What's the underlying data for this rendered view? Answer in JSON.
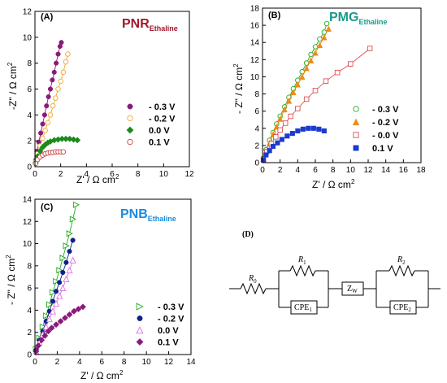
{
  "chart_data": [
    {
      "type": "scatter",
      "panel_label": "(A)",
      "title_main": "PNR",
      "title_sub": "Ethaline",
      "title_color": "#a0182a",
      "xlabel_main": "Z' / Ω cm",
      "ylabel_main": "-Z\" / Ω cm",
      "unit_power": "2",
      "xlim": [
        0,
        12
      ],
      "ylim": [
        0,
        12
      ],
      "xticks": [
        "0",
        "2",
        "4",
        "6",
        "8",
        "10",
        "12"
      ],
      "yticks": [
        "0",
        "2",
        "4",
        "6",
        "8",
        "10",
        "12"
      ],
      "legend_pos": "right-middle",
      "series": [
        {
          "name": "- 0.3 V",
          "color": "#8b1a7a",
          "marker": "circle-filled",
          "x": [
            0.05,
            0.15,
            0.3,
            0.45,
            0.6,
            0.75,
            0.9,
            1.05,
            1.2,
            1.35,
            1.5,
            1.65,
            1.8,
            1.95,
            2.05
          ],
          "y": [
            0.5,
            1.2,
            1.9,
            2.6,
            3.3,
            4.0,
            4.7,
            5.4,
            6.0,
            6.7,
            7.3,
            8.0,
            8.7,
            9.3,
            9.6
          ]
        },
        {
          "name": "- 0.2 V",
          "color": "#f0a830",
          "marker": "circle-open",
          "x": [
            0.05,
            0.2,
            0.4,
            0.6,
            0.8,
            1.0,
            1.2,
            1.4,
            1.6,
            1.8,
            2.0,
            2.2,
            2.4,
            2.55
          ],
          "y": [
            0.4,
            1.0,
            1.6,
            2.2,
            2.8,
            3.4,
            4.0,
            4.7,
            5.3,
            6.0,
            6.6,
            7.3,
            8.1,
            8.7
          ]
        },
        {
          "name": "0.0 V",
          "color": "#1a8a1a",
          "marker": "diamond-filled",
          "x": [
            0.05,
            0.2,
            0.4,
            0.6,
            0.8,
            1.0,
            1.2,
            1.5,
            1.8,
            2.1,
            2.4,
            2.7,
            3.0,
            3.3
          ],
          "y": [
            0.3,
            0.8,
            1.2,
            1.5,
            1.7,
            1.85,
            1.95,
            2.05,
            2.1,
            2.15,
            2.15,
            2.15,
            2.1,
            2.05
          ]
        },
        {
          "name": "0.1 V",
          "color": "#d04040",
          "marker": "circle-open",
          "x": [
            0.05,
            0.2,
            0.4,
            0.6,
            0.8,
            1.0,
            1.2,
            1.4,
            1.6,
            1.8,
            2.0,
            2.2
          ],
          "y": [
            0.25,
            0.55,
            0.75,
            0.9,
            1.0,
            1.05,
            1.1,
            1.1,
            1.15,
            1.15,
            1.15,
            1.15
          ]
        }
      ]
    },
    {
      "type": "scatter",
      "panel_label": "(B)",
      "title_main": "PMG",
      "title_sub": "Ethaline",
      "title_color": "#1a9a8a",
      "xlabel_main": "Z' / Ω cm",
      "ylabel_main": "- Z\" / Ω cm",
      "unit_power": "2",
      "xlim": [
        0,
        18
      ],
      "ylim": [
        0,
        18
      ],
      "xticks": [
        "0",
        "2",
        "4",
        "6",
        "8",
        "10",
        "12",
        "14",
        "16",
        "18"
      ],
      "yticks": [
        "0",
        "2",
        "4",
        "6",
        "8",
        "10",
        "12",
        "14",
        "16",
        "18"
      ],
      "legend_pos": "right-bottom",
      "series": [
        {
          "name": "- 0.3 V",
          "color": "#22aa22",
          "marker": "circle-open",
          "x": [
            0.1,
            0.4,
            0.8,
            1.2,
            1.6,
            2.0,
            2.5,
            3.0,
            3.5,
            4.0,
            4.5,
            5.0,
            5.5,
            6.0,
            6.5,
            7.0,
            7.3
          ],
          "y": [
            0.5,
            1.5,
            2.6,
            3.5,
            4.5,
            5.4,
            6.5,
            7.6,
            8.6,
            9.6,
            10.6,
            11.6,
            12.6,
            13.5,
            14.4,
            15.2,
            16.2
          ]
        },
        {
          "name": "- 0.2 V",
          "color": "#f08a1a",
          "marker": "triangle-filled",
          "x": [
            0.1,
            0.4,
            0.8,
            1.2,
            1.6,
            2.0,
            2.5,
            3.0,
            3.5,
            4.0,
            4.5,
            5.0,
            5.5,
            6.0,
            6.5,
            7.0,
            7.5
          ],
          "y": [
            0.4,
            1.3,
            2.3,
            3.3,
            4.2,
            5.1,
            6.2,
            7.2,
            8.2,
            9.1,
            10.0,
            11.0,
            11.9,
            12.8,
            13.7,
            14.6,
            15.6
          ]
        },
        {
          "name": "- 0.0 V",
          "color": "#e05050",
          "marker": "square-open",
          "x": [
            0.1,
            0.5,
            1.0,
            1.5,
            2.0,
            2.6,
            3.2,
            4.0,
            5.0,
            6.0,
            7.2,
            8.5,
            10.0,
            12.2
          ],
          "y": [
            0.4,
            1.3,
            2.2,
            3.0,
            3.8,
            4.6,
            5.4,
            6.3,
            7.4,
            8.4,
            9.5,
            10.5,
            11.5,
            13.3
          ]
        },
        {
          "name": "0.1 V",
          "color": "#1a3ad0",
          "marker": "square-filled",
          "x": [
            0.1,
            0.4,
            0.8,
            1.2,
            1.7,
            2.2,
            2.8,
            3.4,
            4.0,
            4.6,
            5.2,
            5.8,
            6.4,
            7.0
          ],
          "y": [
            0.3,
            0.9,
            1.4,
            1.9,
            2.3,
            2.7,
            3.1,
            3.4,
            3.7,
            3.9,
            4.0,
            4.0,
            3.9,
            3.7
          ]
        }
      ]
    },
    {
      "type": "scatter",
      "panel_label": "(C)",
      "title_main": "PNB",
      "title_sub": "Ethaline",
      "title_color": "#1a8ae0",
      "xlabel_main": "Z' / Ω cm",
      "ylabel_main": "- Z\" / Ω cm",
      "unit_power": "2",
      "xlim": [
        0,
        14
      ],
      "ylim": [
        0,
        14
      ],
      "xticks": [
        "0",
        "2",
        "4",
        "6",
        "8",
        "10",
        "12",
        "14"
      ],
      "yticks": [
        "0",
        "2",
        "4",
        "6",
        "8",
        "10",
        "12",
        "14"
      ],
      "legend_pos": "right-bottom",
      "series": [
        {
          "name": "- 0.3 V",
          "color": "#22aa22",
          "marker": "triangle-right-open",
          "x": [
            0.1,
            0.4,
            0.7,
            1.0,
            1.3,
            1.6,
            1.9,
            2.2,
            2.5,
            2.8,
            3.1,
            3.4,
            3.7
          ],
          "y": [
            0.5,
            1.5,
            2.5,
            3.5,
            4.5,
            5.6,
            6.6,
            7.6,
            8.7,
            9.8,
            10.9,
            12.2,
            13.5
          ]
        },
        {
          "name": "- 0.2 V",
          "color": "#10208a",
          "marker": "circle-filled",
          "x": [
            0.1,
            0.4,
            0.7,
            1.0,
            1.3,
            1.6,
            1.9,
            2.2,
            2.5,
            2.8,
            3.1,
            3.4
          ],
          "y": [
            0.4,
            1.3,
            2.1,
            3.0,
            3.9,
            4.8,
            5.7,
            6.5,
            7.4,
            8.3,
            9.3,
            10.3
          ]
        },
        {
          "name": "0.0 V",
          "color": "#e070e0",
          "marker": "triangle-open",
          "x": [
            0.1,
            0.4,
            0.7,
            1.0,
            1.3,
            1.6,
            1.9,
            2.2,
            2.5,
            2.8,
            3.1,
            3.4
          ],
          "y": [
            0.3,
            1.1,
            1.8,
            2.5,
            3.2,
            3.9,
            4.6,
            5.3,
            6.0,
            6.8,
            7.6,
            8.5
          ]
        },
        {
          "name": "0.1 V",
          "color": "#8b1a7a",
          "marker": "diamond-filled",
          "x": [
            0.1,
            0.3,
            0.6,
            0.9,
            1.2,
            1.5,
            1.9,
            2.3,
            2.7,
            3.1,
            3.5,
            3.9,
            4.3
          ],
          "y": [
            0.3,
            0.8,
            1.3,
            1.7,
            2.1,
            2.4,
            2.7,
            3.0,
            3.3,
            3.6,
            3.9,
            4.1,
            4.3
          ]
        }
      ]
    }
  ],
  "circuit": {
    "panel_label": "(D)",
    "r0_main": "R",
    "r0_sub": "0",
    "r1_main": "R",
    "r1_sub": "1",
    "cpe1_main": "CPE",
    "cpe1_sub": "1",
    "zw_main": "Z",
    "zw_sub": "W",
    "r2_main": "R",
    "r2_sub": "2",
    "cpe2_main": "CPE",
    "cpe2_sub": "2"
  }
}
